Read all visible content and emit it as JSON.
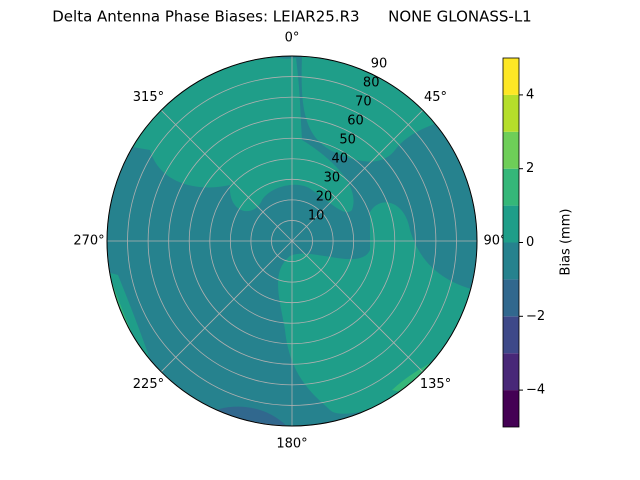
{
  "chart_data": {
    "type": "polar_contour",
    "title": "Delta Antenna Phase Biases: LEIAR25.R3      NONE GLONASS-L1",
    "theta_zero": "N",
    "theta_direction": "clockwise",
    "theta_ticks": [
      {
        "value": 0,
        "label": "0°"
      },
      {
        "value": 45,
        "label": "45°"
      },
      {
        "value": 90,
        "label": "90°"
      },
      {
        "value": 135,
        "label": "135°"
      },
      {
        "value": 180,
        "label": "180°"
      },
      {
        "value": 225,
        "label": "225°"
      },
      {
        "value": 270,
        "label": "270°"
      },
      {
        "value": 315,
        "label": "315°"
      }
    ],
    "rlim": [
      0,
      90
    ],
    "rticks": [
      10,
      20,
      30,
      40,
      50,
      60,
      70,
      80,
      90
    ],
    "grid": true,
    "levels": [
      -5,
      -4,
      -3,
      -2,
      -1,
      0,
      1,
      2,
      3,
      4,
      5
    ],
    "colors": [
      "#440154",
      "#482878",
      "#3e4989",
      "#31688e",
      "#26828e",
      "#1f9e89",
      "#35b779",
      "#6ece58",
      "#b5de2b",
      "#fde725"
    ],
    "colorbar_label": "Bias (mm)",
    "colorbar_ticks": [
      {
        "value": -4,
        "label": "−4"
      },
      {
        "value": -2,
        "label": "−2"
      },
      0,
      2,
      4
    ]
  }
}
